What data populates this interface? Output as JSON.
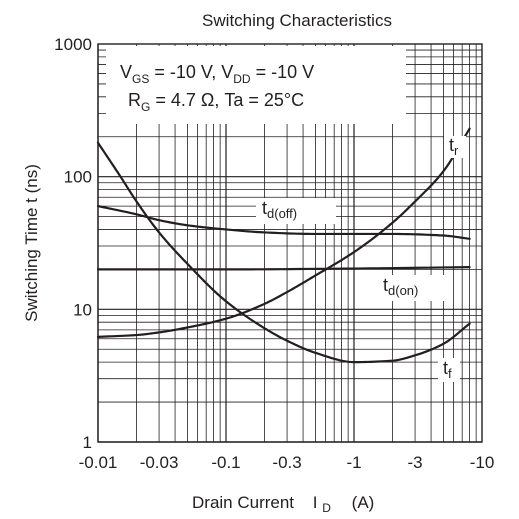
{
  "chart_data": {
    "type": "line",
    "title": "Switching Characteristics",
    "xlabel": {
      "text": "Drain Current",
      "symbol": "I",
      "symbol_sub": "D",
      "unit": "(A)"
    },
    "ylabel": "Switching Time t (ns)",
    "x_scale": "log",
    "y_scale": "log",
    "xlim": [
      -0.01,
      -10
    ],
    "ylim": [
      1,
      1000
    ],
    "x_ticks": [
      -0.01,
      -0.03,
      -0.1,
      -0.3,
      -1,
      -3,
      -10
    ],
    "x_tick_labels": [
      "-0.01",
      "-0.03",
      "-0.1",
      "-0.3",
      "-1",
      "-3",
      "-10"
    ],
    "y_ticks": [
      1,
      10,
      100,
      1000
    ],
    "y_tick_labels": [
      "1",
      "10",
      "100",
      "1000"
    ],
    "grid": true,
    "conditions": [
      {
        "parts": [
          [
            "V",
            ""
          ],
          [
            "GS",
            "sub"
          ],
          [
            " = -10 V, V",
            ""
          ],
          [
            "DD",
            "sub"
          ],
          [
            " = -10 V",
            ""
          ]
        ]
      },
      {
        "parts": [
          [
            "R",
            ""
          ],
          [
            "G",
            "sub"
          ],
          [
            " = 4.7 Ω, Ta  =  25°C",
            ""
          ]
        ]
      }
    ],
    "series": [
      {
        "name": "tr",
        "label": "t",
        "label_sub": "r",
        "x": [
          -0.01,
          -0.02,
          -0.03,
          -0.05,
          -0.1,
          -0.2,
          -0.3,
          -0.5,
          -1,
          -2,
          -3,
          -5,
          -8
        ],
        "y": [
          6.2,
          6.4,
          6.7,
          7.3,
          8.5,
          11,
          13.5,
          18,
          27,
          45,
          65,
          110,
          230
        ]
      },
      {
        "name": "td(off)",
        "label": "t",
        "label_sub": "d(off)",
        "x": [
          -0.01,
          -0.02,
          -0.03,
          -0.05,
          -0.1,
          -0.2,
          -0.5,
          -1,
          -2,
          -5,
          -8
        ],
        "y": [
          60,
          52,
          47,
          43,
          40,
          38,
          37,
          37,
          37,
          36,
          34
        ]
      },
      {
        "name": "td(on)",
        "label": "t",
        "label_sub": "d(on)",
        "x": [
          -0.01,
          -0.1,
          -1,
          -8
        ],
        "y": [
          20,
          20,
          20.3,
          20.8
        ]
      },
      {
        "name": "tf",
        "label": "t",
        "label_sub": "f",
        "x": [
          -0.01,
          -0.015,
          -0.02,
          -0.03,
          -0.05,
          -0.1,
          -0.2,
          -0.3,
          -0.5,
          -1,
          -2,
          -3,
          -5,
          -8
        ],
        "y": [
          180,
          100,
          65,
          38,
          22,
          11.5,
          7.2,
          5.8,
          4.7,
          4.0,
          4.1,
          4.5,
          5.5,
          7.8
        ]
      }
    ]
  }
}
